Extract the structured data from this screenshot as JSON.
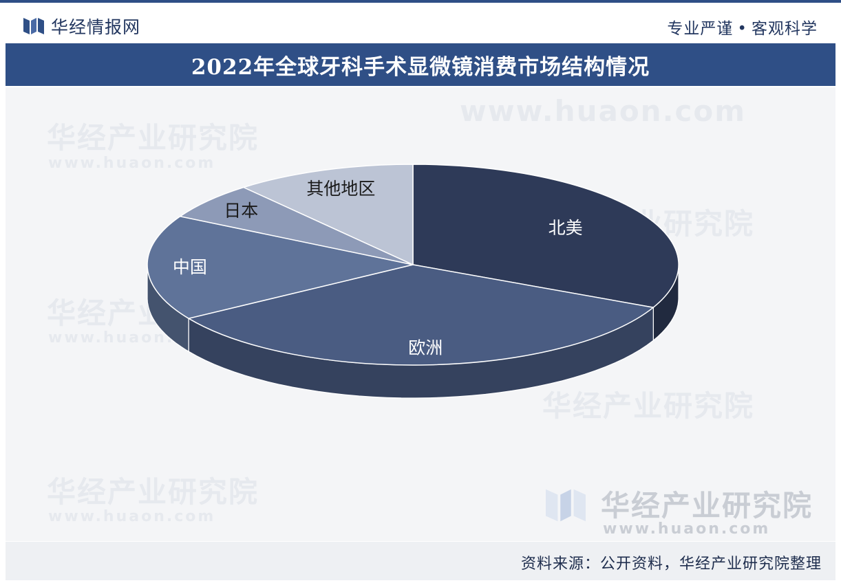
{
  "header": {
    "brand": "华经情报网",
    "slogan_left": "专业严谨",
    "slogan_dot": "•",
    "slogan_right": "客观科学"
  },
  "watermark": {
    "cn": "华经产业研究院",
    "url": "www.huaon.com"
  },
  "chart_data": {
    "type": "pie",
    "title": "2022年全球牙科手术显微镜消费市场结构情况",
    "categories": [
      "北美",
      "欧洲",
      "中国",
      "日本",
      "其他地区"
    ],
    "values": [
      32,
      34,
      17,
      6,
      11
    ],
    "colors": [
      "#2e3a58",
      "#4a5c82",
      "#5f7399",
      "#8d9ab7",
      "#bcc4d5"
    ],
    "data_labels": false,
    "legend": "none",
    "style": "3d"
  },
  "footer": {
    "source": "资料来源：公开资料，华经产业研究院整理"
  }
}
